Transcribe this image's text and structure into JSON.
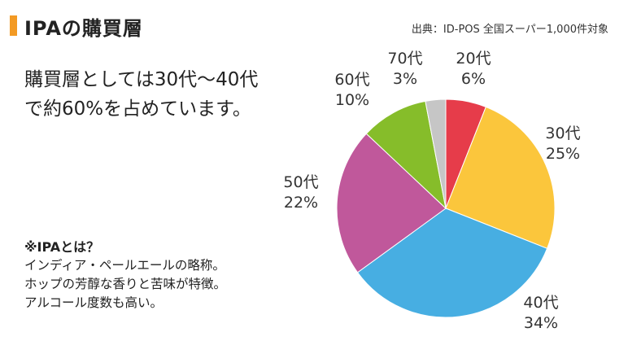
{
  "header": {
    "title": "IPAの購買層",
    "source": "出典：ID-POS 全国スーパー1,000件対象",
    "accent_color": "#f39a24"
  },
  "summary": {
    "line1": "購買層としては30代〜40代",
    "line2": "で約60%を占めています。"
  },
  "note": {
    "title": "※IPAとは？",
    "line1": "インディア・ペールエールの略称。",
    "line2": "ホップの芳醇な香りと苦味が特徴。",
    "line3": "アルコール度数も高い。"
  },
  "chart_data": {
    "type": "pie",
    "title": "",
    "start_angle_deg": 0,
    "direction": "clockwise",
    "categories": [
      "20代",
      "30代",
      "40代",
      "50代",
      "60代",
      "70代"
    ],
    "values": [
      6,
      25,
      34,
      22,
      10,
      3
    ],
    "value_labels": [
      "6%",
      "25%",
      "34%",
      "22%",
      "10%",
      "3%"
    ],
    "colors": [
      "#e63c4a",
      "#fbc63c",
      "#47aee2",
      "#c0589b",
      "#86bd2a",
      "#c6c6c6"
    ]
  }
}
